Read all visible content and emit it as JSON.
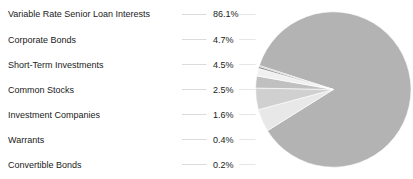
{
  "chart_data": {
    "type": "pie",
    "categories": [
      "Variable Rate Senior Loan Interests",
      "Corporate Bonds",
      "Short-Term Investments",
      "Common Stocks",
      "Investment Companies",
      "Warrants",
      "Convertible Bonds"
    ],
    "values": [
      86.1,
      4.7,
      4.5,
      2.5,
      1.6,
      0.4,
      0.2
    ],
    "value_labels": [
      "86.1%",
      "4.7%",
      "4.5%",
      "2.5%",
      "1.6%",
      "0.4%",
      "0.2%"
    ],
    "colors": [
      "#b3b3b3",
      "#e8e8e8",
      "#d0d0d0",
      "#c0c0c0",
      "#f0f0f0",
      "#878787",
      "#a0a0a0"
    ],
    "data_labels": true,
    "legend": "left"
  }
}
